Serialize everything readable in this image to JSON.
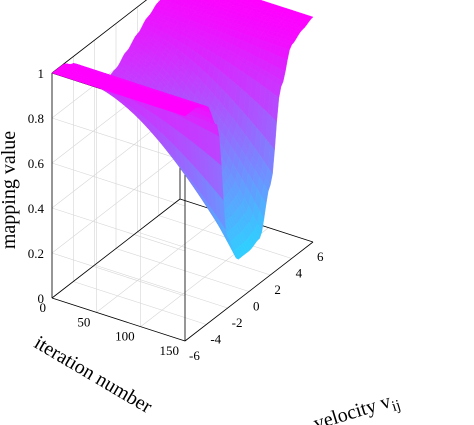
{
  "chart_data": {
    "type": "surface",
    "zlabel": "mapping value",
    "ylabel": "iteration number",
    "xlabel": {
      "main": "velocity v",
      "sub": "ij"
    },
    "x_ticks": [
      "-6",
      "-4",
      "-2",
      "0",
      "2",
      "4",
      "6"
    ],
    "x_tick_values": [
      -6,
      -4,
      -2,
      0,
      2,
      4,
      6
    ],
    "y_ticks": [
      "0",
      "50",
      "100",
      "150"
    ],
    "y_tick_values": [
      0,
      50,
      100,
      150
    ],
    "z_ticks": [
      "0",
      "0.2",
      "0.4",
      "0.6",
      "0.8",
      "1"
    ],
    "z_tick_values": [
      0,
      0.2,
      0.4,
      0.6,
      0.8,
      1
    ],
    "xlim": [
      -6,
      6
    ],
    "ylim": [
      0,
      150
    ],
    "zlim": [
      0,
      1
    ],
    "grid": true,
    "colormap": {
      "low": "#00ffff",
      "high": "#ff00ff"
    },
    "surface_profile": {
      "x": [
        -6,
        -5,
        -4,
        -3,
        -2,
        -1,
        0,
        1,
        2,
        3,
        4,
        5,
        6
      ],
      "z_at_iteration_0": [
        1,
        1,
        0.97,
        0.88,
        0.8,
        0.78,
        0.8,
        0.84,
        0.88,
        0.92,
        0.95,
        0.98,
        1
      ],
      "z_at_iteration_150": [
        1,
        1,
        0.97,
        0.85,
        0.3,
        0.18,
        0.18,
        0.2,
        0.4,
        0.8,
        0.95,
        0.98,
        1
      ]
    }
  }
}
